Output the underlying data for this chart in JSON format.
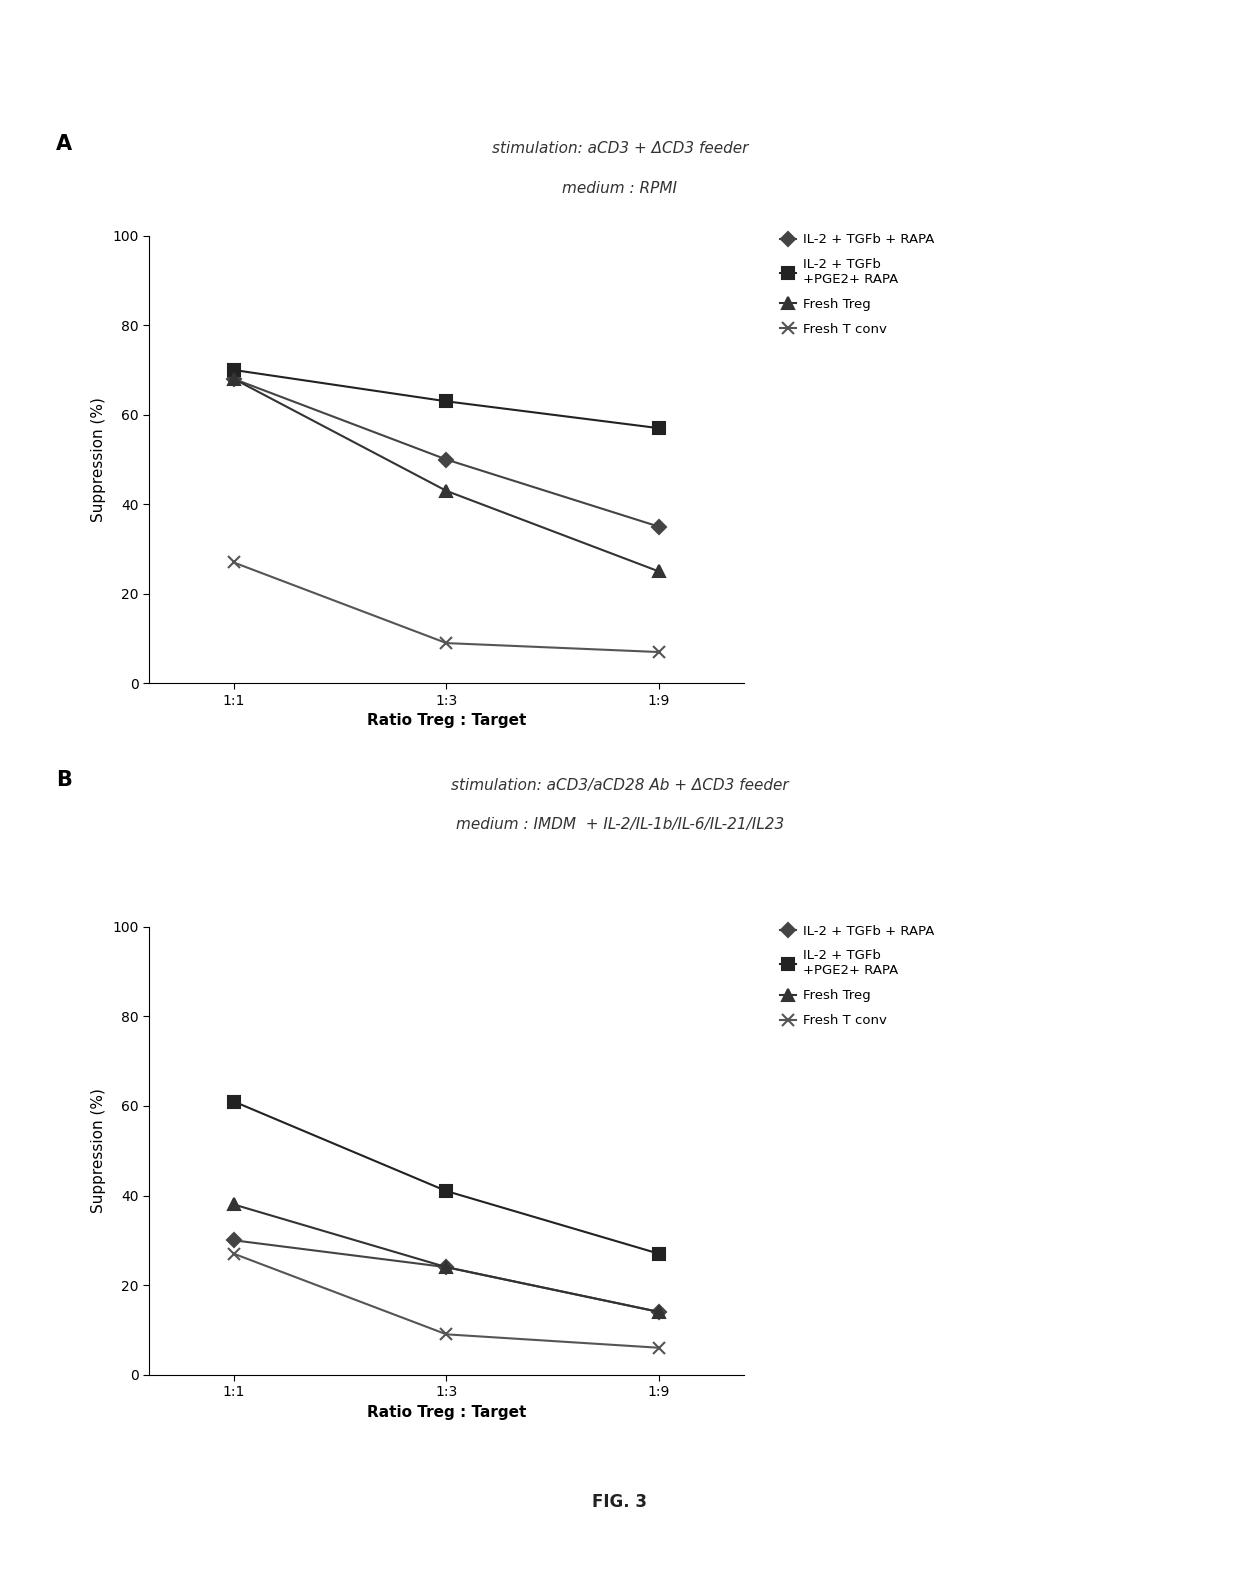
{
  "panel_A": {
    "title_line1": "stimulation: aCD3 + ΔCD3 feeder",
    "title_line2": "medium : RPMI",
    "xlabel": "Ratio Treg : Target",
    "ylabel": "Suppression (%)",
    "xticks": [
      "1:1",
      "1:3",
      "1:9"
    ],
    "xvals": [
      0,
      1,
      2
    ],
    "ylim": [
      0,
      100
    ],
    "yticks": [
      0,
      20,
      40,
      60,
      80,
      100
    ],
    "series": [
      {
        "label": "IL-2 + TGFb + RAPA",
        "values": [
          68,
          50,
          35
        ],
        "marker": "D",
        "color": "#444444",
        "markersize": 7,
        "linewidth": 1.5
      },
      {
        "label": "IL-2 + TGFb\n+PGE2+ RAPA",
        "values": [
          70,
          63,
          57
        ],
        "marker": "s",
        "color": "#222222",
        "markersize": 8,
        "linewidth": 1.5
      },
      {
        "label": "Fresh Treg",
        "values": [
          68,
          43,
          25
        ],
        "marker": "^",
        "color": "#333333",
        "markersize": 8,
        "linewidth": 1.5
      },
      {
        "label": "Fresh T conv",
        "values": [
          27,
          9,
          7
        ],
        "marker": "x",
        "color": "#555555",
        "markersize": 8,
        "linewidth": 1.5
      }
    ]
  },
  "panel_B": {
    "title_line1": "stimulation: aCD3/aCD28 Ab + ΔCD3 feeder",
    "title_line2": "medium : IMDM  + IL-2/IL-1b/IL-6/IL-21/IL23",
    "xlabel": "Ratio Treg : Target",
    "ylabel": "Suppression (%)",
    "xticks": [
      "1:1",
      "1:3",
      "1:9"
    ],
    "xvals": [
      0,
      1,
      2
    ],
    "ylim": [
      0,
      100
    ],
    "yticks": [
      0,
      20,
      40,
      60,
      80,
      100
    ],
    "series": [
      {
        "label": "IL-2 + TGFb + RAPA",
        "values": [
          30,
          24,
          14
        ],
        "marker": "D",
        "color": "#444444",
        "markersize": 7,
        "linewidth": 1.5
      },
      {
        "label": "IL-2 + TGFb\n+PGE2+ RAPA",
        "values": [
          61,
          41,
          27
        ],
        "marker": "s",
        "color": "#222222",
        "markersize": 8,
        "linewidth": 1.5
      },
      {
        "label": "Fresh Treg",
        "values": [
          38,
          24,
          14
        ],
        "marker": "^",
        "color": "#333333",
        "markersize": 8,
        "linewidth": 1.5
      },
      {
        "label": "Fresh T conv",
        "values": [
          27,
          9,
          6
        ],
        "marker": "x",
        "color": "#555555",
        "markersize": 8,
        "linewidth": 1.5
      }
    ]
  },
  "fig_label": "FIG. 3",
  "background_color": "#ffffff",
  "panel_labels": [
    "A",
    "B"
  ],
  "label_fontsize": 15,
  "title_fontsize": 11,
  "axis_label_fontsize": 11,
  "tick_fontsize": 10,
  "legend_fontsize": 9.5
}
